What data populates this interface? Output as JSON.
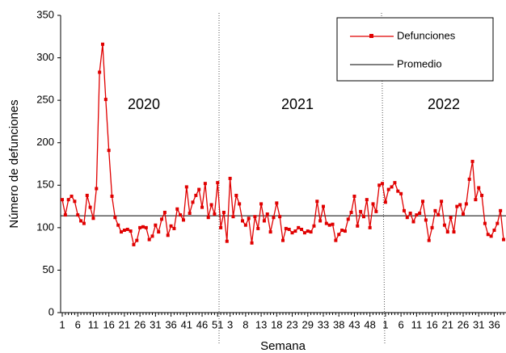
{
  "chart_data": {
    "type": "line",
    "y_label": "Número de defunciones",
    "x_label": "Semana",
    "annotations": [
      "2020",
      "2021",
      "2022"
    ],
    "categories": [
      "1",
      null,
      null,
      null,
      null,
      "6",
      null,
      null,
      null,
      null,
      "11",
      null,
      null,
      null,
      null,
      "16",
      null,
      null,
      null,
      null,
      "21",
      null,
      null,
      null,
      null,
      "26",
      null,
      null,
      null,
      null,
      "31",
      null,
      null,
      null,
      null,
      "36",
      null,
      null,
      null,
      null,
      "41",
      null,
      null,
      null,
      null,
      "46",
      null,
      null,
      null,
      null,
      "51",
      null,
      null,
      null,
      "3",
      null,
      null,
      null,
      null,
      "8",
      null,
      null,
      null,
      null,
      "13",
      null,
      null,
      null,
      null,
      "18",
      null,
      null,
      null,
      null,
      "23",
      null,
      null,
      null,
      null,
      "29",
      null,
      null,
      null,
      null,
      "33",
      null,
      null,
      null,
      null,
      "38",
      null,
      null,
      null,
      null,
      "43",
      null,
      null,
      null,
      null,
      "48",
      null,
      null,
      null,
      null,
      "1",
      null,
      null,
      null,
      null,
      "6",
      null,
      null,
      null,
      null,
      "11",
      null,
      null,
      null,
      null,
      "16",
      null,
      null,
      null,
      null,
      "21",
      null,
      null,
      null,
      null,
      "26",
      null,
      null,
      null,
      null,
      "31",
      null,
      null,
      null,
      null,
      "36",
      null,
      null,
      null
    ],
    "series": [
      {
        "name": "Defunciones",
        "color": "#e00000",
        "values": [
          133,
          115,
          133,
          137,
          131,
          115,
          108,
          105,
          138,
          124,
          111,
          146,
          283,
          316,
          251,
          191,
          137,
          112,
          103,
          95,
          97,
          98,
          96,
          80,
          85,
          100,
          101,
          100,
          86,
          90,
          103,
          95,
          110,
          118,
          91,
          102,
          99,
          122,
          115,
          109,
          148,
          117,
          130,
          138,
          145,
          124,
          152,
          112,
          127,
          116,
          153,
          100,
          118,
          84,
          158,
          113,
          138,
          128,
          108,
          103,
          111,
          82,
          113,
          99,
          128,
          108,
          116,
          95,
          112,
          129,
          113,
          85,
          99,
          98,
          94,
          96,
          100,
          98,
          94,
          96,
          95,
          102,
          131,
          108,
          125,
          105,
          103,
          104,
          85,
          92,
          97,
          96,
          110,
          118,
          137,
          102,
          119,
          113,
          133,
          100,
          128,
          119,
          150,
          152,
          130,
          145,
          148,
          153,
          143,
          140,
          120,
          112,
          117,
          107,
          115,
          117,
          131,
          109,
          85,
          100,
          120,
          115,
          131,
          103,
          95,
          112,
          95,
          125,
          127,
          116,
          128,
          157,
          178,
          133,
          147,
          138,
          105,
          92,
          90,
          97,
          105,
          120,
          86
        ]
      }
    ],
    "reference_line": {
      "name": "Promedio",
      "value": 114,
      "color": "#000000"
    },
    "ylim": [
      0,
      350
    ],
    "yticks": [
      0,
      50,
      100,
      150,
      200,
      250,
      300,
      350
    ]
  }
}
